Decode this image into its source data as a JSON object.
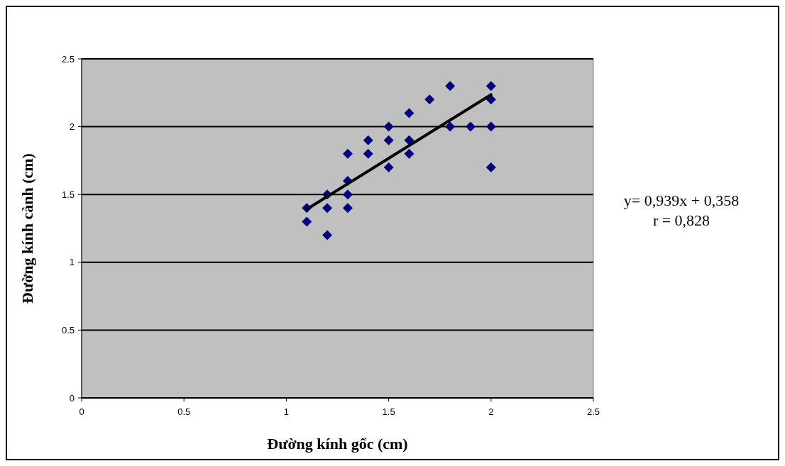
{
  "chart_data": {
    "type": "scatter",
    "xlabel": "Đường kính gốc (cm)",
    "ylabel": "Đường kính cành (cm)",
    "xlim": [
      0,
      2.5
    ],
    "xticks": [
      0,
      0.5,
      1,
      1.5,
      2,
      2.5
    ],
    "ylim": [
      0,
      2.5
    ],
    "yticks": [
      0,
      0.5,
      1,
      1.5,
      2,
      2.5
    ],
    "grid": "y",
    "series": [
      {
        "type": "scatter",
        "color": "#000080",
        "marker": "diamond",
        "x": [
          1.1,
          1.1,
          1.2,
          1.2,
          1.2,
          1.3,
          1.3,
          1.3,
          1.3,
          1.4,
          1.4,
          1.5,
          1.5,
          1.5,
          1.6,
          1.6,
          1.6,
          1.7,
          1.8,
          1.8,
          1.9,
          2.0,
          2.0,
          2.0,
          2.0
        ],
        "values": [
          1.4,
          1.3,
          1.5,
          1.4,
          1.2,
          1.8,
          1.6,
          1.5,
          1.4,
          1.9,
          1.8,
          2.0,
          1.9,
          1.7,
          2.1,
          1.9,
          1.8,
          2.2,
          2.3,
          2.0,
          2.0,
          2.3,
          2.2,
          2.0,
          1.7
        ]
      },
      {
        "type": "line",
        "color": "#000000",
        "marker": "none",
        "line_style": "solid",
        "x": [
          1.1,
          2.0
        ],
        "values": [
          1.391,
          2.236
        ]
      }
    ],
    "annotations": [
      "y= 0,939x + 0,358",
      "r = 0,828"
    ]
  }
}
